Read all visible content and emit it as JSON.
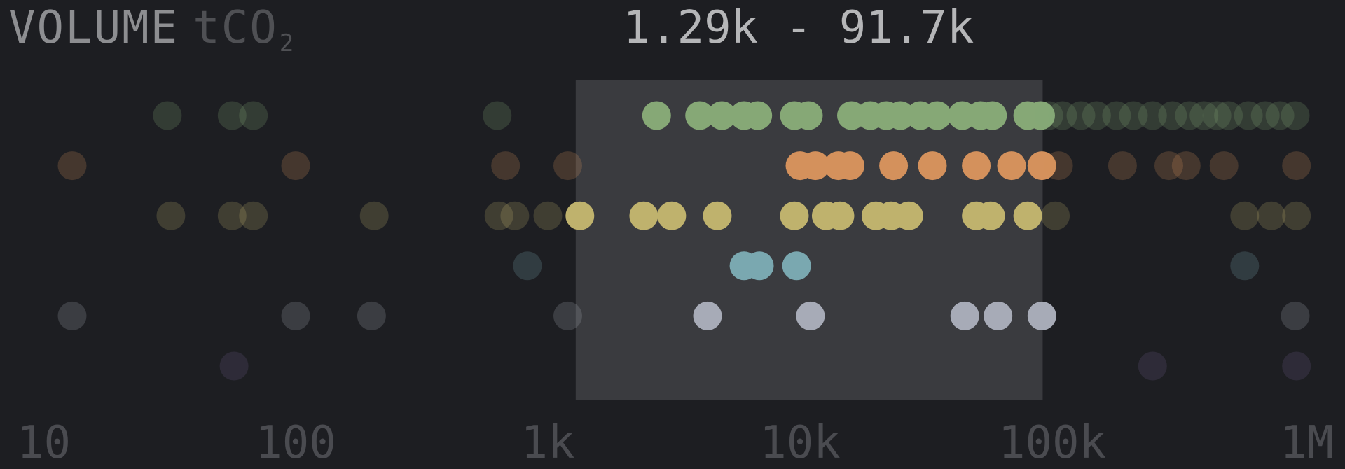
{
  "title": {
    "main": "VOLUME",
    "unit_base": "tCO",
    "unit_sub": "2",
    "range_label": "1.29k - 91.7k"
  },
  "chart_data": {
    "type": "scatter",
    "x_scale": "log",
    "xlim": [
      10,
      1000000
    ],
    "x_ticks": [
      {
        "value": 10,
        "label": "10"
      },
      {
        "value": 100,
        "label": "100"
      },
      {
        "value": 1000,
        "label": "1k"
      },
      {
        "value": 10000,
        "label": "10k"
      },
      {
        "value": 100000,
        "label": "100k"
      },
      {
        "value": 1000000,
        "label": "1M"
      }
    ],
    "selection": {
      "min": 1290,
      "max": 91700
    },
    "colors": {
      "background": "#1d1e22",
      "selection": "#3a3b3f",
      "tick": "#4a4b50"
    },
    "series": [
      {
        "color": "#86a876",
        "x": [
          31,
          56,
          68,
          630,
          2700,
          4000,
          4900,
          6000,
          6800,
          9500,
          10800,
          16000,
          19000,
          22000,
          25000,
          30000,
          35000,
          44000,
          52000,
          58000,
          80000,
          90000,
          97000,
          110000,
          130000,
          150000,
          180000,
          210000,
          250000,
          300000,
          350000,
          400000,
          450000,
          500000,
          600000,
          700000,
          800000,
          920000
        ]
      },
      {
        "color": "#d4915c",
        "x": [
          13,
          100,
          680,
          1200,
          10000,
          11500,
          14200,
          15800,
          23500,
          33500,
          50000,
          69000,
          91000,
          106000,
          190000,
          290000,
          340000,
          480000,
          930000
        ]
      },
      {
        "color": "#bfb26d",
        "x": [
          32,
          56,
          68,
          205,
          640,
          740,
          1000,
          1340,
          2400,
          3100,
          4700,
          9500,
          12700,
          14400,
          20000,
          23000,
          27000,
          50000,
          57000,
          80000,
          103000,
          580000,
          740000,
          930000
        ]
      },
      {
        "color": "#7aa8b0",
        "x": [
          830,
          6000,
          6900,
          9700,
          580000
        ]
      },
      {
        "color": "#a7abb7",
        "x": [
          13,
          100,
          200,
          1200,
          4300,
          11000,
          45000,
          61000,
          91000,
          920000
        ]
      },
      {
        "color": "#6c5a87",
        "x": [
          57,
          250000,
          930000
        ]
      }
    ]
  }
}
